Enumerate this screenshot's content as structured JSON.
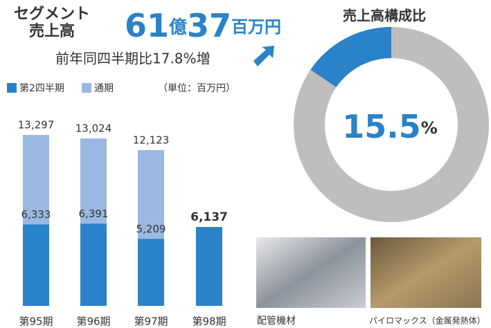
{
  "header": {
    "title_lines": [
      "セグメント",
      "売上高"
    ],
    "amount_parts": [
      "61",
      "億",
      "37",
      "百万円"
    ],
    "comparison": "前年同四半期比17.8%増"
  },
  "chart_data": [
    {
      "type": "bar",
      "subtitle": "（単位：百万円）",
      "categories": [
        "第95期",
        "第96期",
        "第97期",
        "第98期"
      ],
      "series": [
        {
          "name": "第2四半期",
          "color": "#2a82c8",
          "values": [
            6333,
            6391,
            5209,
            6137
          ],
          "value_labels": [
            "6,333",
            "6,391",
            "5,209",
            "6,137"
          ]
        },
        {
          "name": "通期",
          "color": "#9ab8e2",
          "values": [
            13297,
            13024,
            12123,
            null
          ],
          "value_labels": [
            "13,297",
            "13,024",
            "12,123",
            null
          ]
        }
      ],
      "ylim": [
        0,
        14000
      ]
    },
    {
      "type": "pie",
      "title": "売上高構成比",
      "values": [
        15.5
      ],
      "value_labels": [
        "15.5"
      ],
      "unit_label": "%",
      "colors": [
        "#2a82c8"
      ],
      "rest_color": "#bebebe"
    }
  ],
  "photos": [
    {
      "caption": "配管機材"
    },
    {
      "caption": "パイロマックス（金属発熱体）"
    }
  ]
}
